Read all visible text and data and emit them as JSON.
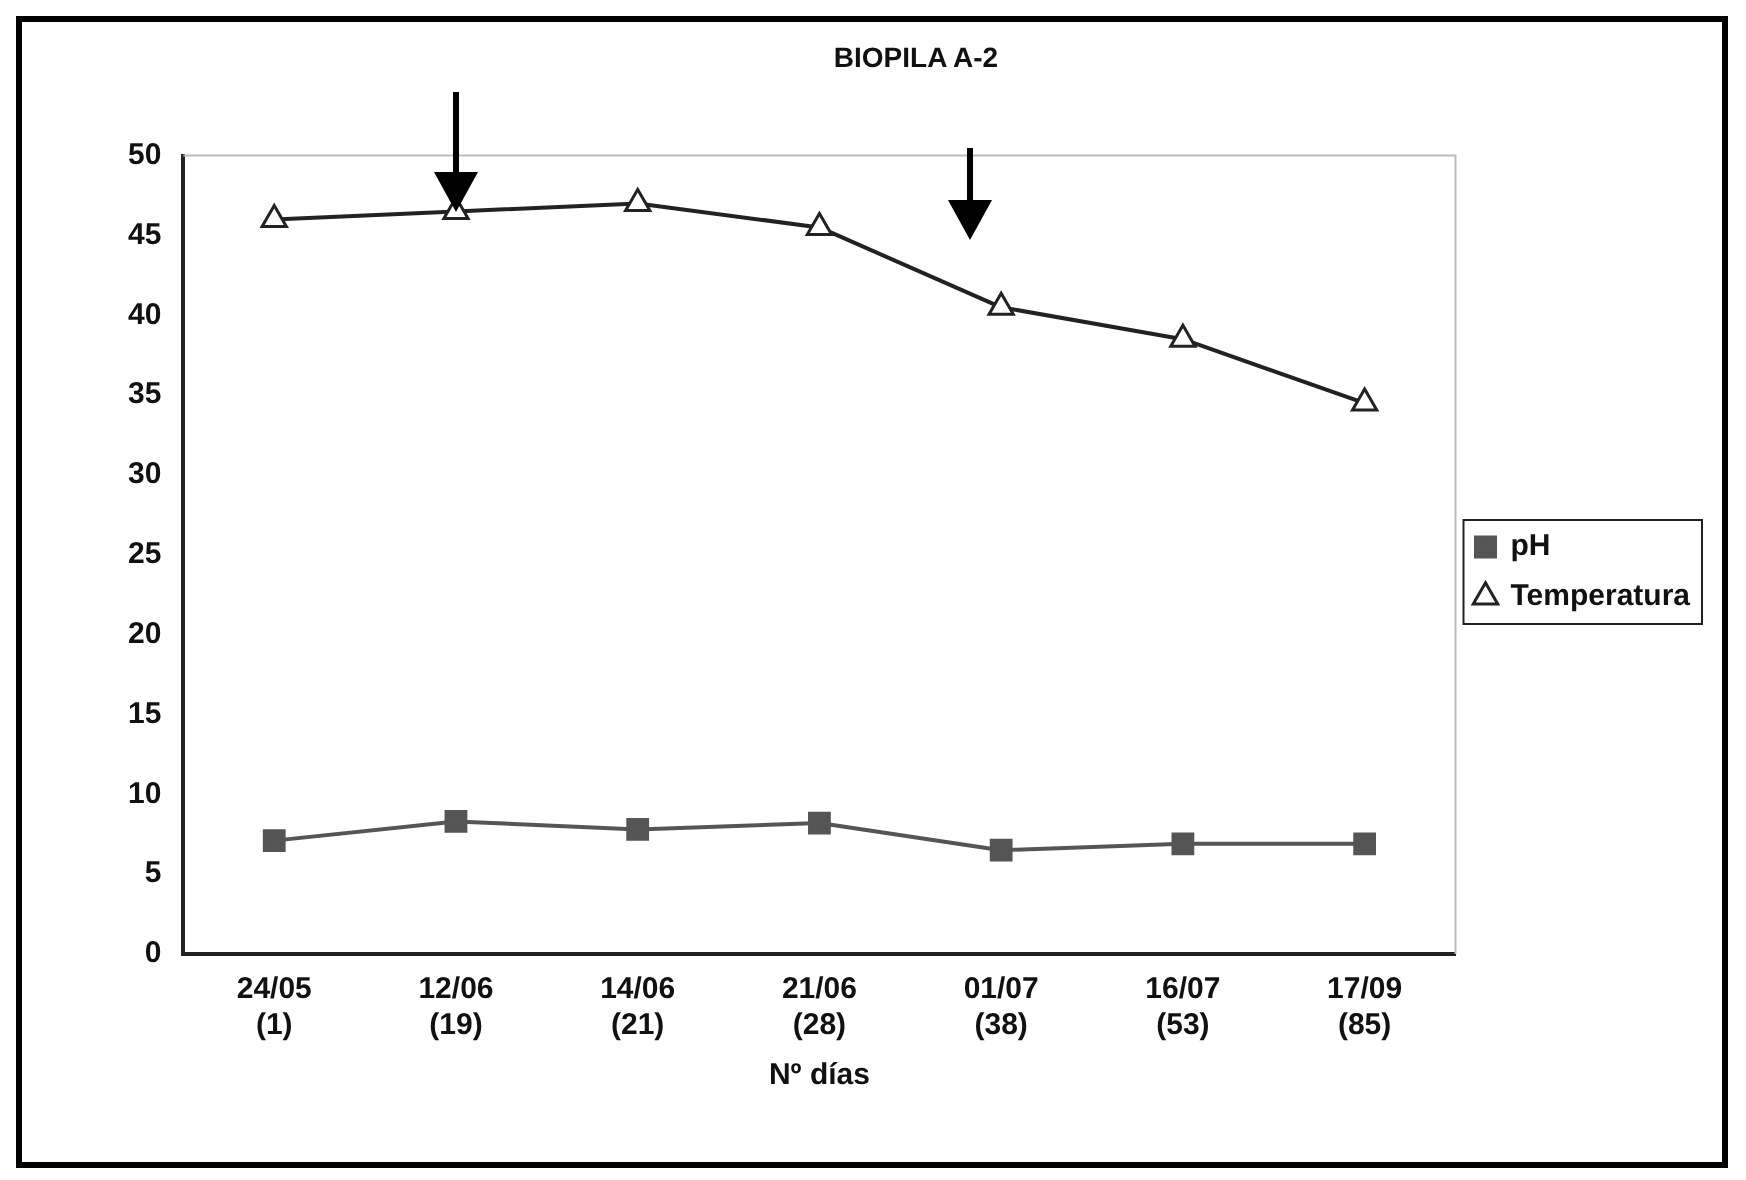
{
  "chart_data": {
    "type": "line",
    "title": "BIOPILA A-2",
    "xlabel": "Nº días",
    "categories": [
      "24/05\n(1)",
      "12/06\n(19)",
      "14/06\n(21)",
      "21/06\n(28)",
      "01/07\n(38)",
      "16/07\n(53)",
      "17/09\n(85)"
    ],
    "series": [
      {
        "name": "pH",
        "color": "#555555",
        "marker": "square",
        "values": [
          7.1,
          8.3,
          7.8,
          8.2,
          6.5,
          6.9,
          6.9
        ]
      },
      {
        "name": "Temperatura",
        "color": "#222222",
        "marker": "triangle",
        "values": [
          46,
          46.5,
          47,
          45.5,
          40.5,
          38.5,
          34.5
        ]
      }
    ],
    "ylim": [
      0,
      50
    ],
    "yticks": [
      0,
      5,
      10,
      15,
      20,
      25,
      30,
      35,
      40,
      45,
      50
    ],
    "legend": "right",
    "grid": false,
    "line_style": "solid"
  }
}
